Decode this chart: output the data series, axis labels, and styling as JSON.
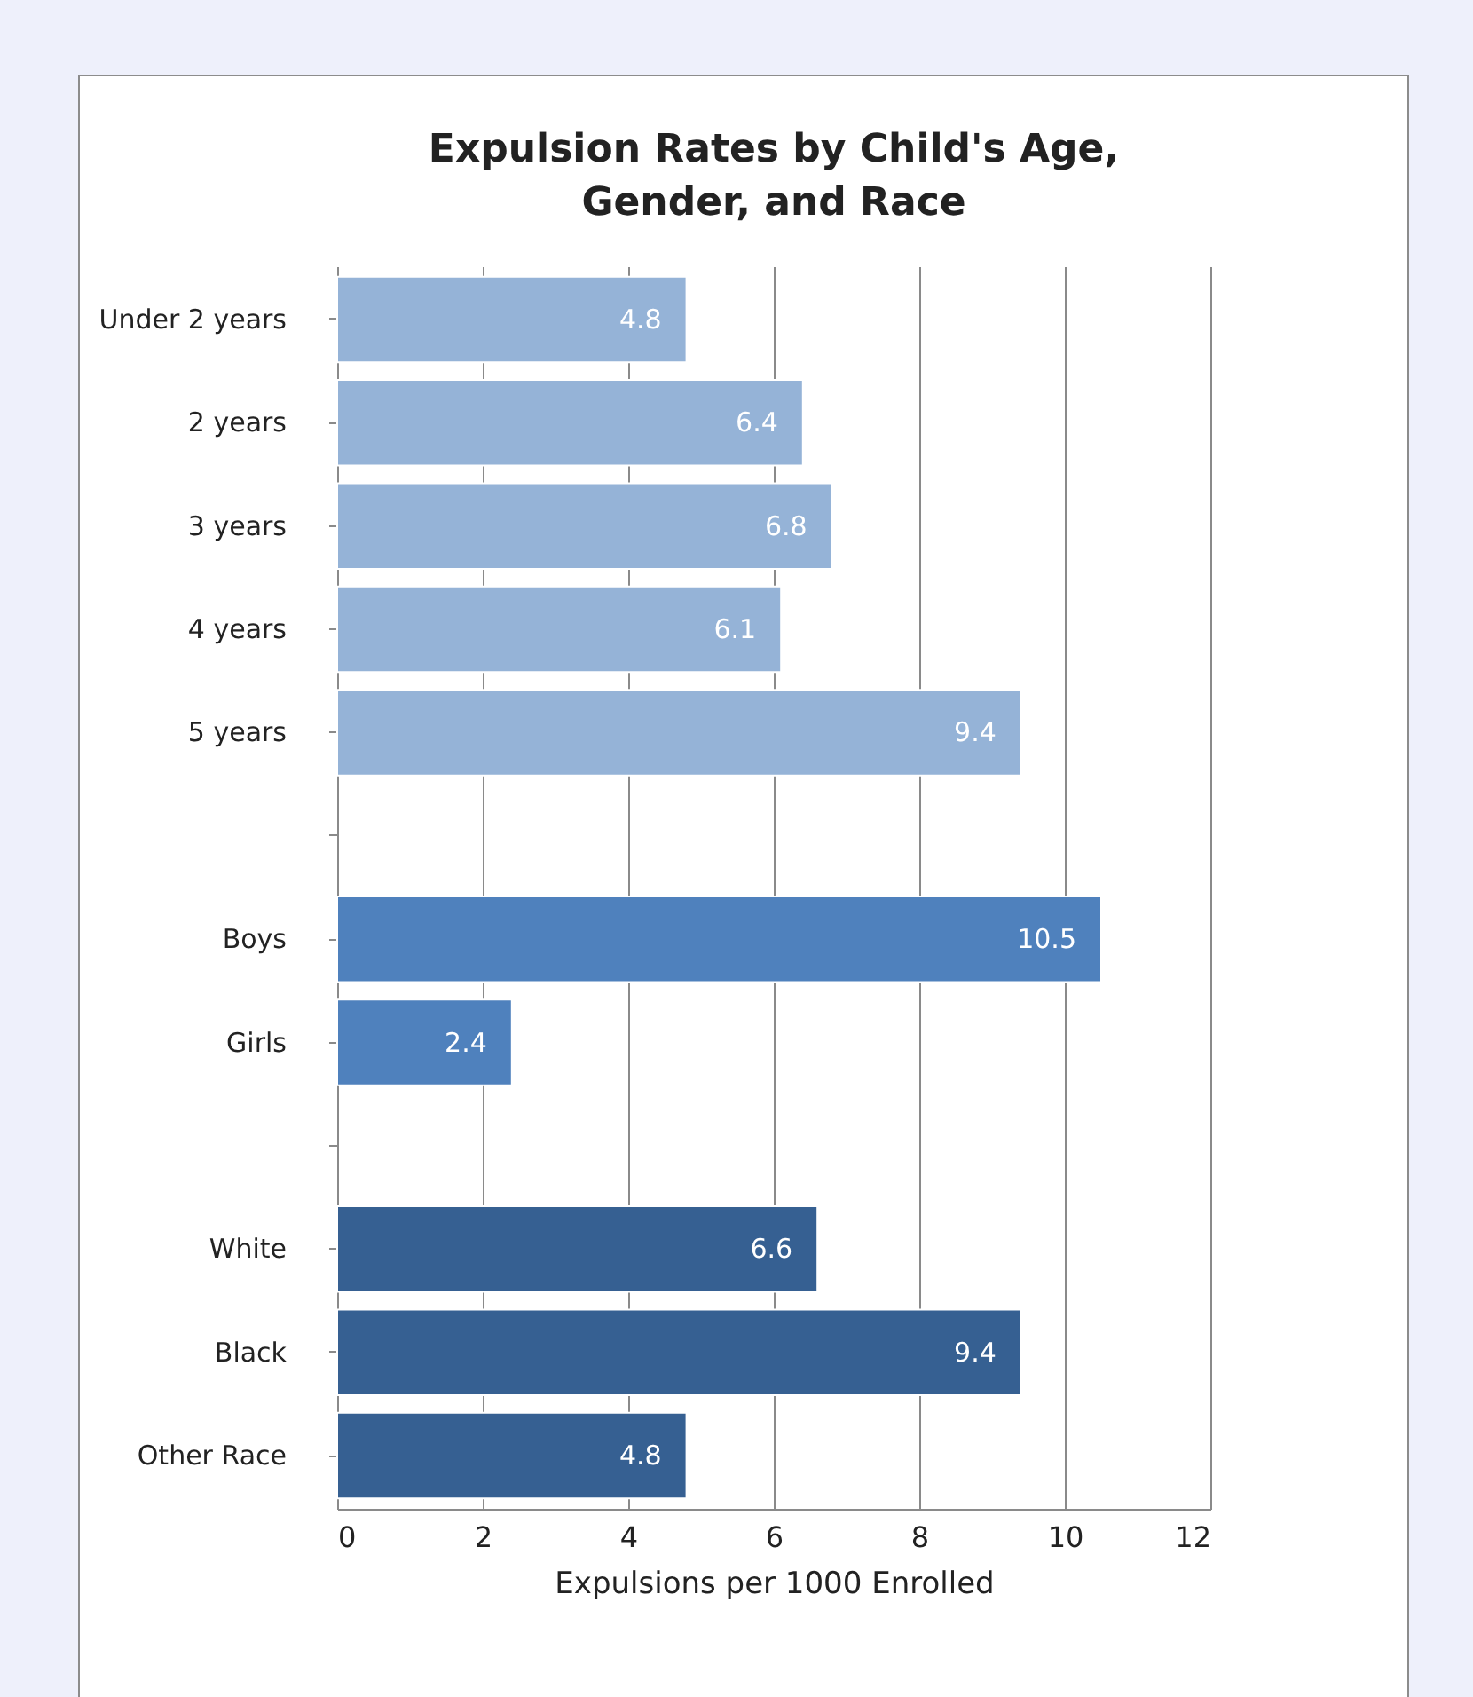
{
  "chart_data": {
    "type": "bar",
    "orientation": "horizontal",
    "title": "Expulsion Rates by Child's Age, Gender, and Race",
    "xlabel": "Expulsions per 1000 Enrolled",
    "categories": [
      "Under 2 years",
      "2 years",
      "3 years",
      "4 years",
      "5 years",
      null,
      "Boys",
      "Girls",
      null,
      "White",
      "Black",
      "Other Race"
    ],
    "values": [
      4.8,
      6.4,
      6.8,
      6.1,
      9.4,
      null,
      10.5,
      2.4,
      null,
      6.6,
      9.4,
      4.8
    ],
    "colors": [
      "#95b3d7",
      "#95b3d7",
      "#95b3d7",
      "#95b3d7",
      "#95b3d7",
      null,
      "#4f81bd",
      "#4f81bd",
      null,
      "#366092",
      "#366092",
      "#366092"
    ],
    "xlim": [
      0,
      12
    ],
    "xticks": [
      0,
      2,
      4,
      6,
      8,
      10,
      12
    ],
    "grid": "x",
    "data_labels": true
  }
}
